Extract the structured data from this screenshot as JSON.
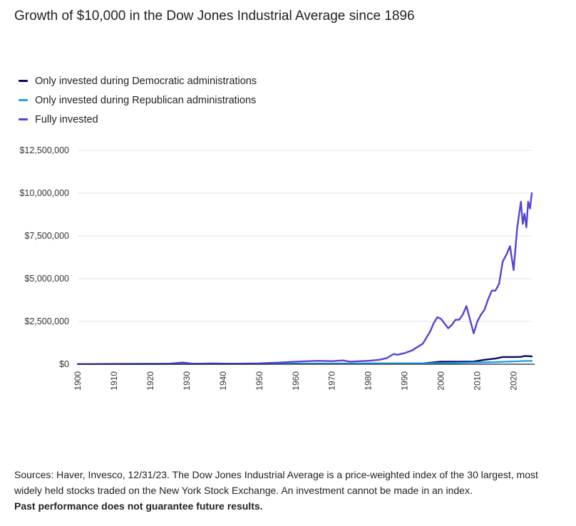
{
  "header": {
    "title": "Growth of $10,000 in the Dow Jones Industrial Average since 1896"
  },
  "legend": [
    {
      "label": "Only invested during Democratic administrations",
      "color": "#0b0b5c"
    },
    {
      "label": "Only invested during Republican administrations",
      "color": "#1fa1f0"
    },
    {
      "label": "Fully invested",
      "color": "#5544d4"
    }
  ],
  "footer": {
    "sources": "Sources: Haver, Invesco, 12/31/23. The Dow Jones Industrial Average is a price-weighted index of the 30 largest, most widely held stocks traded on the New York Stock Exchange. An investment cannot be made in an index.",
    "disclaimer": "Past performance does not guarantee future results."
  },
  "chart_data": {
    "type": "line",
    "title": "Growth of $10,000 in the Dow Jones Industrial Average since 1896",
    "xlabel": "",
    "ylabel": "",
    "xlim": [
      1900,
      2025
    ],
    "ylim": [
      0,
      12500000
    ],
    "x_ticks": [
      1900,
      1910,
      1920,
      1930,
      1940,
      1950,
      1960,
      1970,
      1980,
      1990,
      2000,
      2010,
      2020
    ],
    "y_ticks": [
      {
        "value": 0,
        "label": "$0"
      },
      {
        "value": 2500000,
        "label": "$2,500,000"
      },
      {
        "value": 5000000,
        "label": "$5,000,000"
      },
      {
        "value": 7500000,
        "label": "$7,500,000"
      },
      {
        "value": 10000000,
        "label": "$10,000,000"
      },
      {
        "value": 12500000,
        "label": "$12,500,000"
      }
    ],
    "grid": true,
    "legend_position": "top-left",
    "series": [
      {
        "name": "Only invested during Democratic administrations",
        "color": "#0b0b5c",
        "points": [
          [
            1900,
            10000
          ],
          [
            1920,
            20000
          ],
          [
            1940,
            25000
          ],
          [
            1960,
            35000
          ],
          [
            1980,
            40000
          ],
          [
            1990,
            45000
          ],
          [
            1995,
            50000
          ],
          [
            2000,
            150000
          ],
          [
            2005,
            150000
          ],
          [
            2009,
            160000
          ],
          [
            2012,
            260000
          ],
          [
            2015,
            330000
          ],
          [
            2017,
            420000
          ],
          [
            2020,
            420000
          ],
          [
            2022,
            430000
          ],
          [
            2023,
            480000
          ],
          [
            2024,
            470000
          ],
          [
            2025,
            460000
          ]
        ]
      },
      {
        "name": "Only invested during Republican administrations",
        "color": "#1fa1f0",
        "points": [
          [
            1900,
            10000
          ],
          [
            1920,
            15000
          ],
          [
            1940,
            20000
          ],
          [
            1960,
            30000
          ],
          [
            1980,
            35000
          ],
          [
            1990,
            40000
          ],
          [
            2000,
            60000
          ],
          [
            2005,
            80000
          ],
          [
            2010,
            110000
          ],
          [
            2015,
            120000
          ],
          [
            2018,
            150000
          ],
          [
            2021,
            170000
          ],
          [
            2023,
            190000
          ],
          [
            2025,
            190000
          ]
        ]
      },
      {
        "name": "Fully invested",
        "color": "#5544d4",
        "points": [
          [
            1900,
            10000
          ],
          [
            1910,
            15000
          ],
          [
            1920,
            15000
          ],
          [
            1925,
            30000
          ],
          [
            1929,
            100000
          ],
          [
            1932,
            20000
          ],
          [
            1937,
            50000
          ],
          [
            1942,
            30000
          ],
          [
            1950,
            50000
          ],
          [
            1955,
            90000
          ],
          [
            1960,
            150000
          ],
          [
            1966,
            200000
          ],
          [
            1970,
            180000
          ],
          [
            1973,
            220000
          ],
          [
            1975,
            150000
          ],
          [
            1980,
            200000
          ],
          [
            1983,
            260000
          ],
          [
            1985,
            350000
          ],
          [
            1987,
            600000
          ],
          [
            1988,
            550000
          ],
          [
            1990,
            650000
          ],
          [
            1992,
            800000
          ],
          [
            1995,
            1200000
          ],
          [
            1997,
            1900000
          ],
          [
            1998,
            2400000
          ],
          [
            1999,
            2750000
          ],
          [
            2000,
            2650000
          ],
          [
            2002,
            2100000
          ],
          [
            2003,
            2300000
          ],
          [
            2004,
            2600000
          ],
          [
            2005,
            2600000
          ],
          [
            2006,
            2900000
          ],
          [
            2007,
            3400000
          ],
          [
            2008,
            2600000
          ],
          [
            2009,
            1800000
          ],
          [
            2010,
            2500000
          ],
          [
            2011,
            2900000
          ],
          [
            2012,
            3200000
          ],
          [
            2013,
            3800000
          ],
          [
            2014,
            4300000
          ],
          [
            2015,
            4300000
          ],
          [
            2016,
            4700000
          ],
          [
            2017,
            6000000
          ],
          [
            2018,
            6400000
          ],
          [
            2019,
            6900000
          ],
          [
            2020,
            5500000
          ],
          [
            2020.5,
            6800000
          ],
          [
            2021,
            8000000
          ],
          [
            2022,
            9500000
          ],
          [
            2022.5,
            8200000
          ],
          [
            2023,
            8800000
          ],
          [
            2023.5,
            8000000
          ],
          [
            2024,
            9500000
          ],
          [
            2024.5,
            9100000
          ],
          [
            2025,
            10000000
          ]
        ]
      }
    ]
  }
}
